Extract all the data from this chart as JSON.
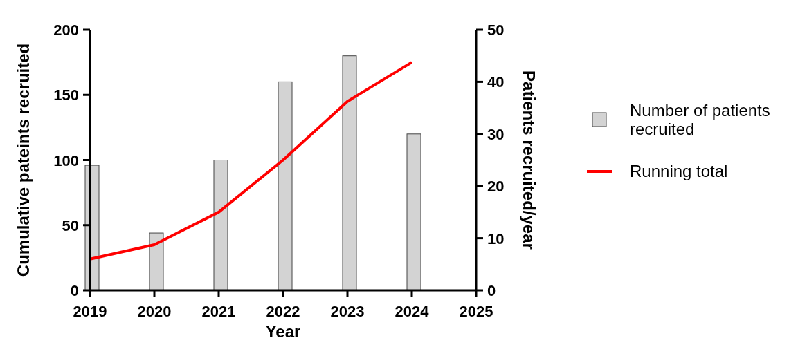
{
  "chart_data": {
    "type": "bar",
    "xlabel": "Year",
    "ylabel": "Cumulative pateints recruited",
    "y2label": "Patients recruited/year",
    "x": [
      2019,
      2020,
      2021,
      2022,
      2023,
      2024
    ],
    "xlim": [
      2019,
      2025
    ],
    "xticks": [
      2019,
      2020,
      2021,
      2022,
      2023,
      2024,
      2025
    ],
    "ylim": [
      0,
      200
    ],
    "yticks": [
      0,
      50,
      100,
      150,
      200
    ],
    "y2lim": [
      0,
      50
    ],
    "y2ticks": [
      0,
      10,
      20,
      30,
      40,
      50
    ],
    "series": [
      {
        "name": "Number of patients recruited",
        "axis": "y2",
        "color": "#d3d3d3",
        "values": [
          24,
          11,
          25,
          40,
          45,
          30
        ]
      },
      {
        "name": "Running total",
        "type": "line",
        "axis": "y",
        "color": "#ff0000",
        "values": [
          24,
          35,
          60,
          100,
          145,
          175
        ]
      }
    ],
    "legend": "right",
    "grid": false
  }
}
